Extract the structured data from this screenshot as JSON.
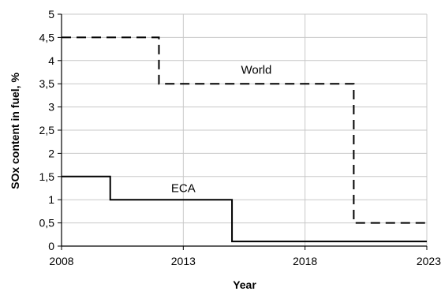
{
  "chart_data": {
    "type": "line",
    "title": "",
    "xlabel": "Year",
    "ylabel": "SOx content in fuel, %",
    "xlim": [
      2008,
      2023
    ],
    "ylim": [
      0,
      5
    ],
    "x_ticks": [
      "2008",
      "2013",
      "2018",
      "2023"
    ],
    "y_ticks": [
      "0",
      "0,5",
      "1",
      "1,5",
      "2",
      "2,5",
      "3",
      "3,5",
      "4",
      "4,5",
      "5"
    ],
    "grid": true,
    "series": [
      {
        "name": "World",
        "style": "dashed",
        "step": true,
        "x": [
          2008,
          2012,
          2012,
          2020,
          2020,
          2023
        ],
        "y": [
          4.5,
          4.5,
          3.5,
          3.5,
          0.5,
          0.5
        ]
      },
      {
        "name": "ECA",
        "style": "solid",
        "step": true,
        "x": [
          2008,
          2010,
          2010,
          2015,
          2015,
          2023
        ],
        "y": [
          1.5,
          1.5,
          1.0,
          1.0,
          0.1,
          0.1
        ]
      }
    ],
    "label_positions": {
      "World": {
        "x": 2016.0,
        "y": 3.8
      },
      "ECA": {
        "x": 2013.0,
        "y": 1.25
      }
    },
    "colors": {
      "series": "#000000",
      "grid": "#c8c8c8",
      "axis": "#000000"
    }
  }
}
